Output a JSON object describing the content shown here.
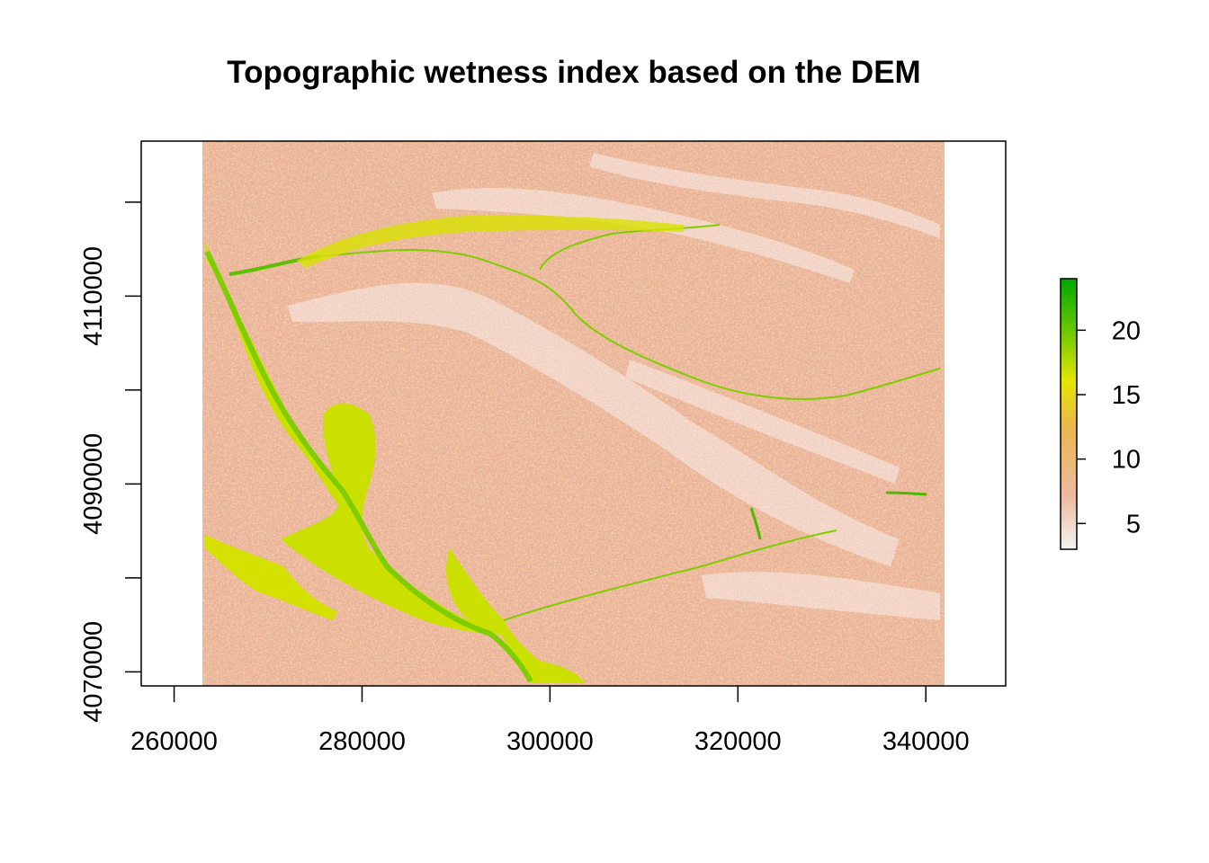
{
  "chart_data": {
    "type": "heatmap",
    "title": "Topographic wetness index based on the DEM",
    "xlabel": "",
    "ylabel": "",
    "x_ticks": [
      260000,
      280000,
      300000,
      320000,
      340000
    ],
    "y_ticks": [
      4070000,
      4080000,
      4090000,
      4100000,
      4110000,
      4120000
    ],
    "y_tick_labels": [
      {
        "value": 4070000,
        "label": "4070000"
      },
      {
        "value": 4090000,
        "label": "4090000"
      },
      {
        "value": 4110000,
        "label": "4110000"
      }
    ],
    "xlim": [
      256500,
      348500
    ],
    "ylim": [
      4068500,
      4126500
    ],
    "raster_extent": {
      "x": [
        263000,
        342000
      ],
      "y": [
        4068500,
        4126500
      ]
    },
    "legend": {
      "position": "right",
      "range": [
        3,
        24
      ],
      "ticks": [
        5,
        10,
        15,
        20
      ],
      "colors": [
        "#f2f2f2",
        "#eeb99f",
        "#eab64e",
        "#e6e600",
        "#63c600",
        "#00a600"
      ]
    },
    "background_color": "#eab095",
    "wet_color_low": "#e6e600",
    "wet_color_high": "#3cb300",
    "ridge_color": "#f4dcd2"
  }
}
